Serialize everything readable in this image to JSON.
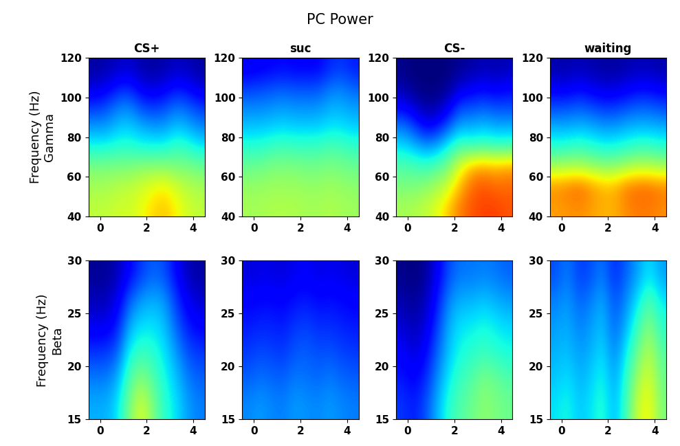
{
  "title": "PC Power",
  "chart_data": [
    {
      "type": "heatmap",
      "title": "CS+",
      "ylabel": "Frequency (Hz)\nGamma",
      "color": "jet",
      "xlim": [
        -0.5,
        4.5
      ],
      "xticks": [
        0,
        2,
        4
      ],
      "ylim": [
        40,
        120
      ],
      "yticks": [
        40,
        60,
        80,
        100,
        120
      ],
      "color_range": [
        0,
        1
      ],
      "cells": [
        [
          0.58,
          0.58,
          0.6,
          0.6,
          0.63,
          0.68,
          0.7,
          0.65,
          0.6,
          0.58
        ],
        [
          0.55,
          0.55,
          0.57,
          0.58,
          0.6,
          0.63,
          0.65,
          0.6,
          0.57,
          0.55
        ],
        [
          0.5,
          0.5,
          0.5,
          0.5,
          0.52,
          0.52,
          0.52,
          0.5,
          0.5,
          0.48
        ],
        [
          0.38,
          0.38,
          0.4,
          0.4,
          0.38,
          0.38,
          0.38,
          0.42,
          0.4,
          0.36
        ],
        [
          0.28,
          0.28,
          0.32,
          0.33,
          0.3,
          0.28,
          0.28,
          0.32,
          0.3,
          0.26
        ],
        [
          0.18,
          0.2,
          0.25,
          0.26,
          0.2,
          0.18,
          0.2,
          0.24,
          0.22,
          0.18
        ],
        [
          0.08,
          0.1,
          0.15,
          0.16,
          0.1,
          0.08,
          0.1,
          0.14,
          0.12,
          0.08
        ],
        [
          0.03,
          0.04,
          0.06,
          0.07,
          0.04,
          0.03,
          0.04,
          0.06,
          0.05,
          0.03
        ]
      ]
    },
    {
      "type": "heatmap",
      "title": "suc",
      "color": "jet",
      "xlim": [
        -0.5,
        4.5
      ],
      "xticks": [
        0,
        2,
        4
      ],
      "ylim": [
        40,
        120
      ],
      "yticks": [
        40,
        60,
        80,
        100,
        120
      ],
      "color_range": [
        0,
        1
      ],
      "cells": [
        [
          0.55,
          0.55,
          0.56,
          0.56,
          0.56,
          0.55,
          0.55,
          0.56,
          0.55,
          0.54
        ],
        [
          0.53,
          0.53,
          0.54,
          0.54,
          0.54,
          0.53,
          0.53,
          0.54,
          0.53,
          0.52
        ],
        [
          0.48,
          0.48,
          0.5,
          0.5,
          0.5,
          0.49,
          0.49,
          0.5,
          0.49,
          0.48
        ],
        [
          0.4,
          0.4,
          0.42,
          0.43,
          0.42,
          0.42,
          0.42,
          0.44,
          0.43,
          0.41
        ],
        [
          0.32,
          0.32,
          0.33,
          0.34,
          0.33,
          0.33,
          0.33,
          0.35,
          0.35,
          0.33
        ],
        [
          0.26,
          0.26,
          0.27,
          0.28,
          0.27,
          0.27,
          0.27,
          0.3,
          0.3,
          0.28
        ],
        [
          0.18,
          0.19,
          0.2,
          0.21,
          0.2,
          0.2,
          0.2,
          0.24,
          0.25,
          0.22
        ],
        [
          0.1,
          0.11,
          0.12,
          0.13,
          0.12,
          0.12,
          0.12,
          0.16,
          0.18,
          0.15
        ]
      ]
    },
    {
      "type": "heatmap",
      "title": "CS-",
      "color": "jet",
      "xlim": [
        -0.5,
        4.5
      ],
      "xticks": [
        0,
        2,
        4
      ],
      "ylim": [
        40,
        120
      ],
      "yticks": [
        40,
        60,
        80,
        100,
        120
      ],
      "color_range": [
        0,
        1
      ],
      "cells": [
        [
          0.55,
          0.56,
          0.58,
          0.62,
          0.7,
          0.78,
          0.82,
          0.84,
          0.84,
          0.82
        ],
        [
          0.5,
          0.5,
          0.52,
          0.55,
          0.6,
          0.72,
          0.8,
          0.82,
          0.8,
          0.8
        ],
        [
          0.45,
          0.44,
          0.42,
          0.45,
          0.5,
          0.62,
          0.72,
          0.74,
          0.72,
          0.74
        ],
        [
          0.35,
          0.32,
          0.28,
          0.3,
          0.38,
          0.45,
          0.42,
          0.44,
          0.42,
          0.43
        ],
        [
          0.25,
          0.2,
          0.12,
          0.14,
          0.22,
          0.3,
          0.3,
          0.32,
          0.3,
          0.3
        ],
        [
          0.12,
          0.08,
          0.03,
          0.04,
          0.1,
          0.2,
          0.2,
          0.22,
          0.2,
          0.2
        ],
        [
          0.04,
          0.01,
          0.0,
          0.0,
          0.02,
          0.08,
          0.1,
          0.12,
          0.1,
          0.12
        ],
        [
          0.01,
          0.0,
          0.0,
          0.0,
          0.0,
          0.02,
          0.03,
          0.05,
          0.04,
          0.05
        ]
      ]
    },
    {
      "type": "heatmap",
      "title": "waiting",
      "color": "jet",
      "xlim": [
        -0.5,
        4.5
      ],
      "xticks": [
        0,
        2,
        4
      ],
      "ylim": [
        40,
        120
      ],
      "yticks": [
        40,
        60,
        80,
        100,
        120
      ],
      "color_range": [
        0,
        1
      ],
      "cells": [
        [
          0.74,
          0.75,
          0.76,
          0.74,
          0.72,
          0.72,
          0.76,
          0.78,
          0.78,
          0.76
        ],
        [
          0.76,
          0.78,
          0.8,
          0.76,
          0.72,
          0.72,
          0.78,
          0.8,
          0.8,
          0.78
        ],
        [
          0.55,
          0.56,
          0.56,
          0.54,
          0.52,
          0.52,
          0.55,
          0.57,
          0.57,
          0.55
        ],
        [
          0.4,
          0.4,
          0.42,
          0.4,
          0.38,
          0.38,
          0.4,
          0.42,
          0.42,
          0.4
        ],
        [
          0.3,
          0.3,
          0.31,
          0.3,
          0.28,
          0.28,
          0.3,
          0.31,
          0.31,
          0.3
        ],
        [
          0.2,
          0.2,
          0.22,
          0.2,
          0.18,
          0.18,
          0.2,
          0.22,
          0.22,
          0.2
        ],
        [
          0.1,
          0.1,
          0.12,
          0.1,
          0.08,
          0.08,
          0.1,
          0.12,
          0.12,
          0.1
        ],
        [
          0.04,
          0.04,
          0.05,
          0.04,
          0.03,
          0.03,
          0.04,
          0.05,
          0.05,
          0.04
        ]
      ]
    },
    {
      "type": "heatmap",
      "ylabel": "Frequency (Hz)\nBeta",
      "color": "jet",
      "xlim": [
        -0.5,
        4.5
      ],
      "xticks": [
        0,
        2,
        4
      ],
      "ylim": [
        15,
        30
      ],
      "yticks": [
        15,
        20,
        25,
        30
      ],
      "color_range": [
        0,
        1
      ],
      "cells": [
        [
          0.3,
          0.3,
          0.35,
          0.5,
          0.62,
          0.5,
          0.4,
          0.35,
          0.28,
          0.25
        ],
        [
          0.25,
          0.25,
          0.3,
          0.45,
          0.52,
          0.45,
          0.38,
          0.32,
          0.25,
          0.22
        ],
        [
          0.18,
          0.18,
          0.22,
          0.38,
          0.42,
          0.4,
          0.35,
          0.28,
          0.2,
          0.18
        ],
        [
          0.1,
          0.1,
          0.15,
          0.3,
          0.35,
          0.35,
          0.32,
          0.22,
          0.15,
          0.12
        ],
        [
          0.05,
          0.05,
          0.1,
          0.22,
          0.28,
          0.3,
          0.28,
          0.18,
          0.1,
          0.07
        ],
        [
          0.02,
          0.02,
          0.05,
          0.12,
          0.18,
          0.22,
          0.2,
          0.12,
          0.05,
          0.03
        ]
      ]
    },
    {
      "type": "heatmap",
      "color": "jet",
      "xlim": [
        -0.5,
        4.5
      ],
      "xticks": [
        0,
        2,
        4
      ],
      "ylim": [
        15,
        30
      ],
      "yticks": [
        15,
        20,
        25,
        30
      ],
      "color_range": [
        0,
        1
      ],
      "cells": [
        [
          0.26,
          0.28,
          0.26,
          0.25,
          0.28,
          0.27,
          0.26,
          0.28,
          0.26,
          0.25
        ],
        [
          0.22,
          0.24,
          0.23,
          0.22,
          0.25,
          0.24,
          0.23,
          0.25,
          0.23,
          0.22
        ],
        [
          0.18,
          0.2,
          0.19,
          0.18,
          0.21,
          0.22,
          0.2,
          0.21,
          0.19,
          0.18
        ],
        [
          0.15,
          0.16,
          0.16,
          0.15,
          0.18,
          0.19,
          0.17,
          0.17,
          0.16,
          0.15
        ],
        [
          0.12,
          0.13,
          0.13,
          0.12,
          0.14,
          0.15,
          0.13,
          0.14,
          0.13,
          0.12
        ],
        [
          0.08,
          0.09,
          0.09,
          0.08,
          0.1,
          0.11,
          0.09,
          0.1,
          0.09,
          0.08
        ]
      ]
    },
    {
      "type": "heatmap",
      "color": "jet",
      "xlim": [
        -0.5,
        4.5
      ],
      "xticks": [
        0,
        2,
        4
      ],
      "ylim": [
        15,
        30
      ],
      "yticks": [
        15,
        20,
        25,
        30
      ],
      "color_range": [
        0,
        1
      ],
      "cells": [
        [
          0.18,
          0.15,
          0.2,
          0.3,
          0.4,
          0.45,
          0.48,
          0.52,
          0.5,
          0.48
        ],
        [
          0.15,
          0.12,
          0.16,
          0.26,
          0.36,
          0.42,
          0.45,
          0.5,
          0.48,
          0.45
        ],
        [
          0.12,
          0.08,
          0.12,
          0.22,
          0.32,
          0.38,
          0.4,
          0.42,
          0.4,
          0.38
        ],
        [
          0.08,
          0.05,
          0.08,
          0.18,
          0.3,
          0.35,
          0.36,
          0.38,
          0.36,
          0.34
        ],
        [
          0.04,
          0.02,
          0.05,
          0.14,
          0.26,
          0.3,
          0.3,
          0.32,
          0.3,
          0.28
        ],
        [
          0.01,
          0.0,
          0.02,
          0.1,
          0.2,
          0.24,
          0.24,
          0.25,
          0.24,
          0.22
        ]
      ]
    },
    {
      "type": "heatmap",
      "color": "jet",
      "xlim": [
        -0.5,
        4.5
      ],
      "xticks": [
        0,
        2,
        4
      ],
      "ylim": [
        15,
        30
      ],
      "yticks": [
        15,
        20,
        25,
        30
      ],
      "color_range": [
        0,
        1
      ],
      "cells": [
        [
          0.35,
          0.38,
          0.32,
          0.35,
          0.4,
          0.3,
          0.42,
          0.6,
          0.65,
          0.5
        ],
        [
          0.32,
          0.35,
          0.3,
          0.33,
          0.38,
          0.28,
          0.4,
          0.55,
          0.62,
          0.48
        ],
        [
          0.3,
          0.32,
          0.28,
          0.3,
          0.35,
          0.25,
          0.36,
          0.48,
          0.58,
          0.45
        ],
        [
          0.28,
          0.3,
          0.25,
          0.28,
          0.32,
          0.22,
          0.3,
          0.42,
          0.52,
          0.4
        ],
        [
          0.25,
          0.28,
          0.22,
          0.25,
          0.3,
          0.2,
          0.26,
          0.35,
          0.45,
          0.35
        ],
        [
          0.2,
          0.25,
          0.18,
          0.2,
          0.25,
          0.16,
          0.22,
          0.28,
          0.35,
          0.28
        ]
      ]
    }
  ]
}
